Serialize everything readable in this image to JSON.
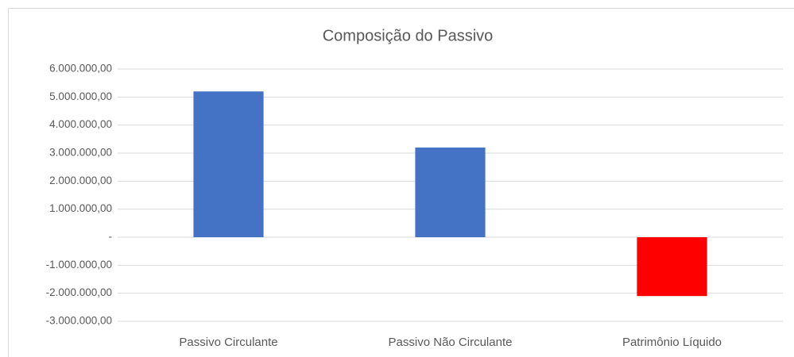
{
  "chart_data": {
    "type": "bar",
    "title": "Composição do Passivo",
    "categories": [
      "Passivo Circulante",
      "Passivo Não Circulante",
      "Patrimônio Líquido"
    ],
    "values": [
      5200000,
      3200000,
      -2100000
    ],
    "colors": [
      "#4472c4",
      "#4472c4",
      "#ff0000"
    ],
    "ylim": [
      -3000000,
      6000000
    ],
    "yticks": [
      {
        "value": -3000000,
        "label": "-3.000.000,00"
      },
      {
        "value": -2000000,
        "label": "-2.000.000,00"
      },
      {
        "value": -1000000,
        "label": "-1.000.000,00"
      },
      {
        "value": 0,
        "label": "-"
      },
      {
        "value": 1000000,
        "label": "1.000.000,00"
      },
      {
        "value": 2000000,
        "label": "2.000.000,00"
      },
      {
        "value": 3000000,
        "label": "3.000.000,00"
      },
      {
        "value": 4000000,
        "label": "4.000.000,00"
      },
      {
        "value": 5000000,
        "label": "5.000.000,00"
      },
      {
        "value": 6000000,
        "label": "6.000.000,00"
      }
    ],
    "grid": true
  }
}
